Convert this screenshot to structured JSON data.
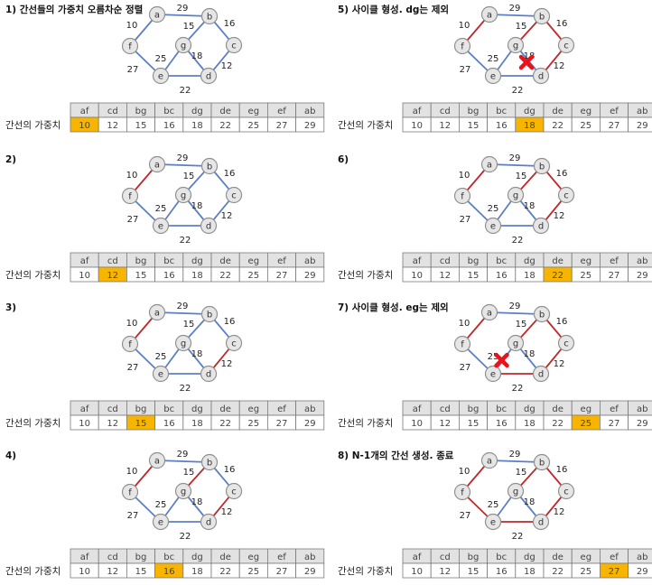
{
  "colors": {
    "edge_default": "#5b7fc4",
    "edge_selected": "#c0282a",
    "highlight": "#f7b500",
    "cross": "#e8141b"
  },
  "table_row_label": "간선의 가중치",
  "nodes": [
    "a",
    "b",
    "c",
    "d",
    "e",
    "f",
    "g"
  ],
  "edges": [
    {
      "id": "af",
      "u": "a",
      "v": "f",
      "w": "10"
    },
    {
      "id": "cd",
      "u": "c",
      "v": "d",
      "w": "12"
    },
    {
      "id": "bg",
      "u": "b",
      "v": "g",
      "w": "15"
    },
    {
      "id": "bc",
      "u": "b",
      "v": "c",
      "w": "16"
    },
    {
      "id": "dg",
      "u": "d",
      "v": "g",
      "w": "18"
    },
    {
      "id": "de",
      "u": "d",
      "v": "e",
      "w": "22"
    },
    {
      "id": "eg",
      "u": "e",
      "v": "g",
      "w": "25"
    },
    {
      "id": "ef",
      "u": "e",
      "v": "f",
      "w": "27"
    },
    {
      "id": "ab",
      "u": "a",
      "v": "b",
      "w": "29"
    }
  ],
  "panels": [
    {
      "title": "1) 간선들의 가중치 오름차순 정렬",
      "selected": [],
      "highlight": "af",
      "cross": null
    },
    {
      "title": "2)",
      "selected": [
        "af"
      ],
      "highlight": "cd",
      "cross": null
    },
    {
      "title": "3)",
      "selected": [
        "af",
        "cd"
      ],
      "highlight": "bg",
      "cross": null
    },
    {
      "title": "4)",
      "selected": [
        "af",
        "cd",
        "bg"
      ],
      "highlight": "bc",
      "cross": null
    },
    {
      "title": "5) 사이클 형성. dg는 제외",
      "selected": [
        "af",
        "cd",
        "bg",
        "bc"
      ],
      "highlight": "dg",
      "cross": "dg"
    },
    {
      "title": "6)",
      "selected": [
        "af",
        "cd",
        "bg",
        "bc"
      ],
      "highlight": "de",
      "cross": null
    },
    {
      "title": "7) 사이클 형성. eg는 제외",
      "selected": [
        "af",
        "cd",
        "bg",
        "bc",
        "de"
      ],
      "highlight": "eg",
      "cross": "eg"
    },
    {
      "title": "8) N-1개의 간선 생성. 종료",
      "selected": [
        "af",
        "cd",
        "bg",
        "bc",
        "de",
        "ef"
      ],
      "highlight": "ef",
      "cross": null
    }
  ]
}
